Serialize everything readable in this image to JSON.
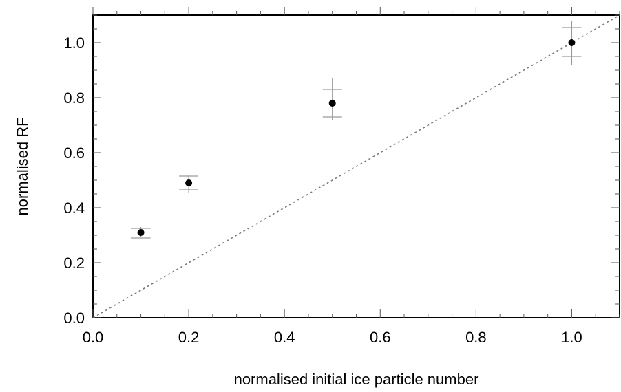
{
  "chart_data": {
    "type": "scatter",
    "title": "",
    "xlabel": "normalised initial ice particle number",
    "ylabel": "normalised RF",
    "xlim": [
      0.0,
      1.1
    ],
    "ylim": [
      0.0,
      1.1
    ],
    "x_ticks": [
      "0.0",
      "0.2",
      "0.4",
      "0.6",
      "0.8",
      "1.0"
    ],
    "y_ticks": [
      "0.0",
      "0.2",
      "0.4",
      "0.6",
      "0.8",
      "1.0"
    ],
    "x_minor_step": 0.05,
    "y_minor_step": 0.05,
    "grid": false,
    "points": [
      {
        "x": 0.1,
        "y": 0.31,
        "y_err_low": 0.29,
        "y_err_high": 0.325,
        "y_err_outer_low": 0.295,
        "y_err_outer_high": 0.33
      },
      {
        "x": 0.2,
        "y": 0.49,
        "y_err_low": 0.465,
        "y_err_high": 0.515,
        "y_err_outer_low": 0.455,
        "y_err_outer_high": 0.52
      },
      {
        "x": 0.5,
        "y": 0.78,
        "y_err_low": 0.73,
        "y_err_high": 0.83,
        "y_err_outer_low": 0.72,
        "y_err_outer_high": 0.87
      },
      {
        "x": 1.0,
        "y": 1.0,
        "y_err_low": 0.95,
        "y_err_high": 1.055,
        "y_err_outer_low": 0.92,
        "y_err_outer_high": 1.08
      }
    ],
    "reference_line": {
      "x": [
        0.0,
        1.1
      ],
      "y": [
        0.0,
        1.1
      ],
      "style": "dotted"
    },
    "colors": {
      "marker": "#000000",
      "error_bar": "#9a9a9a",
      "reference_line": "#7a7a7a",
      "frame": "#000000"
    }
  }
}
